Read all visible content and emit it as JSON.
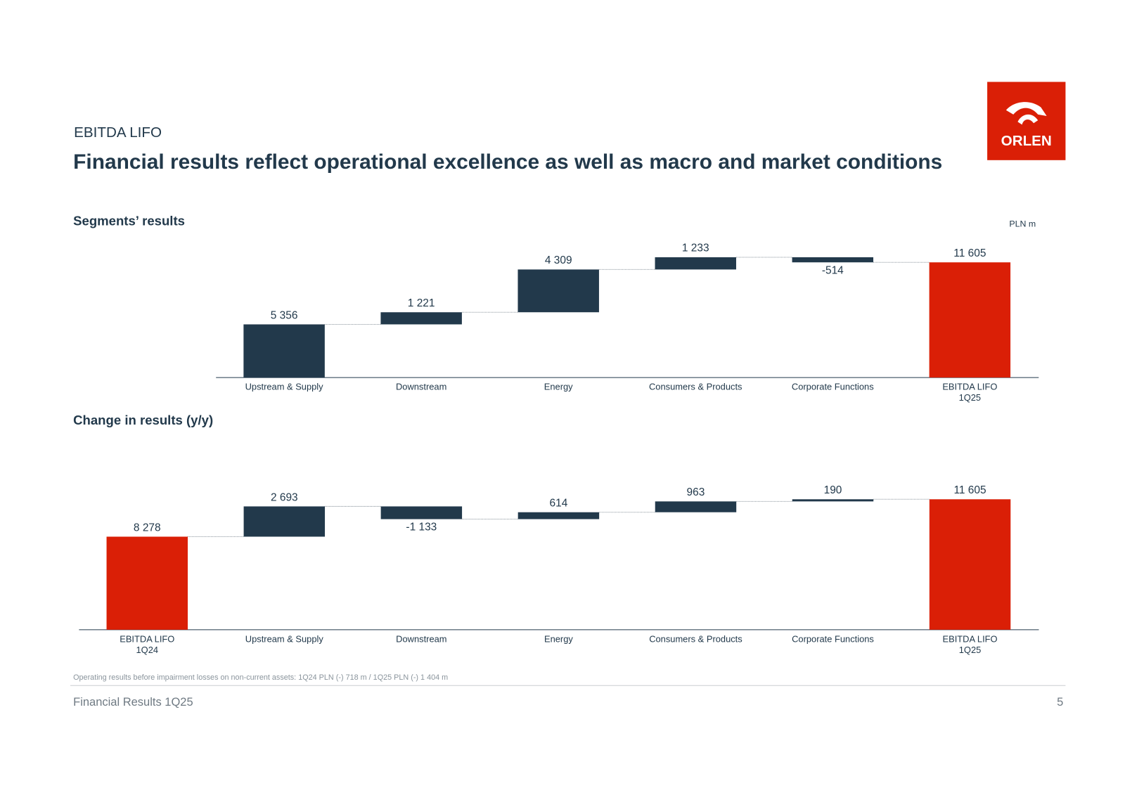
{
  "header": {
    "kicker": "EBITDA LIFO",
    "title": "Financial results reflect operational excellence as well as macro and market conditions",
    "logo": "ORLEN"
  },
  "unit": "PLN m",
  "chart_data": [
    {
      "type": "waterfall",
      "title": "Segments’ results",
      "categories": [
        "Upstream & Supply",
        "Downstream",
        "Energy",
        "Consumers & Products",
        "Corporate Functions",
        "EBITDA LIFO\n1Q25"
      ],
      "values": [
        5356,
        1221,
        4309,
        1233,
        -514,
        11605
      ],
      "value_labels": [
        "5 356",
        "1 221",
        "4 309",
        "1 233",
        "-514",
        "11 605"
      ],
      "is_total": [
        false,
        false,
        false,
        false,
        false,
        true
      ],
      "color": "#22394b",
      "total_color": "#da1f06"
    },
    {
      "type": "waterfall",
      "title": "Change in results (y/y)",
      "categories": [
        "EBITDA LIFO\n1Q24",
        "Upstream & Supply",
        "Downstream",
        "Energy",
        "Consumers & Products",
        "Corporate Functions",
        "EBITDA LIFO\n1Q25"
      ],
      "values": [
        8278,
        2693,
        -1133,
        614,
        963,
        190,
        11605
      ],
      "value_labels": [
        "8 278",
        "2 693",
        "-1 133",
        "614",
        "963",
        "190",
        "11 605"
      ],
      "is_total": [
        true,
        false,
        false,
        false,
        false,
        false,
        true
      ],
      "color": "#22394b",
      "total_color": "#da1f06"
    }
  ],
  "footnote": "Operating results before impairment losses on non-current assets: 1Q24 PLN (-) 718 m / 1Q25 PLN (-) 1 404 m",
  "footer": {
    "left": "Financial Results 1Q25",
    "page": "5"
  }
}
